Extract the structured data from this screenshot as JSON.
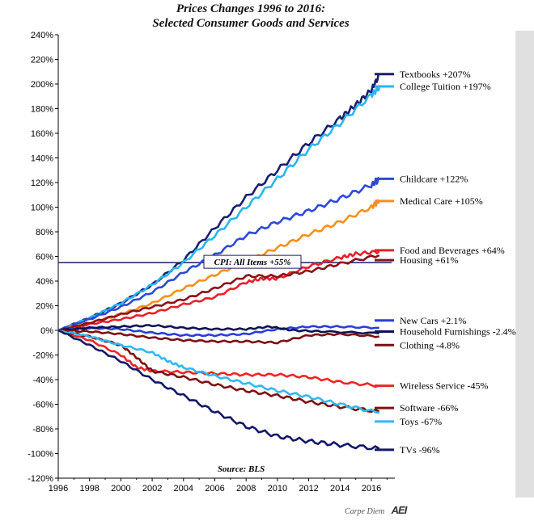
{
  "chart_data": {
    "type": "line",
    "title": "Prices Changes 1996 to 2016:",
    "subtitle": "Selected Consumer Goods and Services",
    "source": "Source: BLS",
    "credit": "Carpe Diem",
    "credit_logo": "AEI",
    "ylim": [
      -120,
      240
    ],
    "yticks": [
      -120,
      -100,
      -80,
      -60,
      -40,
      -20,
      0,
      20,
      40,
      60,
      80,
      100,
      120,
      140,
      160,
      180,
      200,
      220,
      240
    ],
    "ytick_labels": [
      "-120%",
      "-100%",
      "-80%",
      "-60%",
      "-40%",
      "-20%",
      "0%",
      "20%",
      "40%",
      "60%",
      "80%",
      "100%",
      "120%",
      "140%",
      "160%",
      "180%",
      "200%",
      "220%",
      "240%"
    ],
    "xlim": [
      1996,
      2017.5
    ],
    "xticks": [
      1996,
      1998,
      2000,
      2002,
      2004,
      2006,
      2008,
      2010,
      2012,
      2014,
      2016
    ],
    "xtick_labels": [
      "1996",
      "1998",
      "2000",
      "2002",
      "2004",
      "2006",
      "2008",
      "2010",
      "2012",
      "2014",
      "2016"
    ],
    "grid": false,
    "legend": "right",
    "reference_line": {
      "label": "CPI: All Items +55%",
      "y": 55,
      "color": "#1a1f5c"
    },
    "series": [
      {
        "name": "Textbooks +207%",
        "color": "#1a1f6e",
        "label_y": 208,
        "x": [
          1996,
          1998,
          2000,
          2002,
          2004,
          2006,
          2008,
          2010,
          2012,
          2014,
          2015,
          2016,
          2016.5
        ],
        "y": [
          0,
          10,
          22,
          37,
          57,
          83,
          108,
          130,
          152,
          172,
          183,
          195,
          207
        ]
      },
      {
        "name": "College Tuition +197%",
        "color": "#29b6f0",
        "label_y": 198,
        "x": [
          1996,
          1998,
          2000,
          2002,
          2004,
          2006,
          2008,
          2010,
          2012,
          2014,
          2016,
          2016.5
        ],
        "y": [
          0,
          10,
          22,
          37,
          55,
          77,
          100,
          123,
          147,
          168,
          191,
          197
        ]
      },
      {
        "name": "Childcare +122%",
        "color": "#2c4ad8",
        "label_y": 123,
        "x": [
          1996,
          1998,
          2000,
          2002,
          2004,
          2006,
          2008,
          2010,
          2012,
          2014,
          2016,
          2016.5
        ],
        "y": [
          0,
          9,
          19,
          31,
          47,
          61,
          77,
          88,
          97,
          107,
          118,
          122
        ]
      },
      {
        "name": "Medical Care +105%",
        "color": "#f5901e",
        "label_y": 105,
        "x": [
          1996,
          1998,
          2000,
          2002,
          2004,
          2006,
          2008,
          2010,
          2012,
          2014,
          2016,
          2016.5
        ],
        "y": [
          0,
          6,
          13,
          22,
          34,
          45,
          56,
          67,
          78,
          88,
          100,
          105
        ]
      },
      {
        "name": "Food and Beverages +64%",
        "color": "#e8202a",
        "label_y": 65,
        "x": [
          1996,
          1998,
          2000,
          2002,
          2004,
          2006,
          2008,
          2009,
          2010,
          2012,
          2014,
          2015,
          2016.5
        ],
        "y": [
          0,
          5,
          9,
          14,
          21,
          27,
          39,
          42,
          42,
          52,
          59,
          62,
          64
        ]
      },
      {
        "name": "Housing +61%",
        "color": "#8b1218",
        "label_y": 57,
        "x": [
          1996,
          1998,
          2000,
          2002,
          2004,
          2006,
          2008,
          2010,
          2012,
          2014,
          2016.5
        ],
        "y": [
          0,
          6,
          13,
          19,
          25,
          34,
          44,
          44,
          48,
          54,
          61
        ]
      },
      {
        "name": "New Cars +2.1%",
        "color": "#2a3ed6",
        "label_y": 8,
        "x": [
          1996,
          1998,
          2000,
          2002,
          2004,
          2006,
          2008,
          2010,
          2012,
          2014,
          2016.5
        ],
        "y": [
          0,
          2,
          1,
          -2,
          -4,
          -4,
          -3,
          1,
          3,
          3,
          2
        ]
      },
      {
        "name": "Household Furnishings -2.4%",
        "color": "#0e1252",
        "label_y": -1,
        "x": [
          1996,
          1998,
          2000,
          2002,
          2004,
          2006,
          2008,
          2009.5,
          2011,
          2013,
          2016.5
        ],
        "y": [
          0,
          2,
          3,
          4,
          2,
          1,
          1,
          3,
          0,
          -1,
          -2.4
        ]
      },
      {
        "name": "Clothing -4.8%",
        "color": "#7a1014",
        "label_y": -12,
        "x": [
          1996,
          1998,
          2000,
          2002,
          2004,
          2006,
          2008,
          2010,
          2012,
          2014,
          2016.5
        ],
        "y": [
          0,
          -1,
          -3,
          -6,
          -8,
          -9,
          -9,
          -10,
          -4,
          -3,
          -5
        ]
      },
      {
        "name": "Wireless Service -45%",
        "color": "#ee2525",
        "label_y": -45,
        "x": [
          1996,
          1998,
          2000,
          2001,
          2002,
          2004,
          2006,
          2008,
          2010,
          2012,
          2014,
          2016.5
        ],
        "y": [
          0,
          -8,
          -20,
          -30,
          -33,
          -34,
          -35,
          -36,
          -36,
          -38,
          -42,
          -45
        ]
      },
      {
        "name": "Software -66%",
        "color": "#7a1414",
        "label_y": -63,
        "x": [
          1996,
          1998,
          2000,
          2001,
          2002,
          2004,
          2006,
          2008,
          2010,
          2012,
          2014,
          2016.5
        ],
        "y": [
          0,
          -5,
          -12,
          -22,
          -33,
          -38,
          -44,
          -49,
          -53,
          -58,
          -62,
          -66
        ]
      },
      {
        "name": "Toys -67%",
        "color": "#33b8f0",
        "label_y": -74,
        "x": [
          1996,
          1998,
          2000,
          2002,
          2003,
          2004,
          2006,
          2008,
          2010,
          2012,
          2014,
          2016.5
        ],
        "y": [
          0,
          -5,
          -12,
          -18,
          -25,
          -30,
          -37,
          -43,
          -49,
          -54,
          -60,
          -67
        ]
      },
      {
        "name": "TVs -96%",
        "color": "#121868",
        "label_y": -97,
        "x": [
          1996,
          1998,
          2000,
          2002,
          2004,
          2006,
          2008,
          2010,
          2012,
          2014,
          2016.5
        ],
        "y": [
          0,
          -12,
          -25,
          -40,
          -53,
          -66,
          -78,
          -86,
          -90,
          -93,
          -96
        ]
      }
    ]
  }
}
